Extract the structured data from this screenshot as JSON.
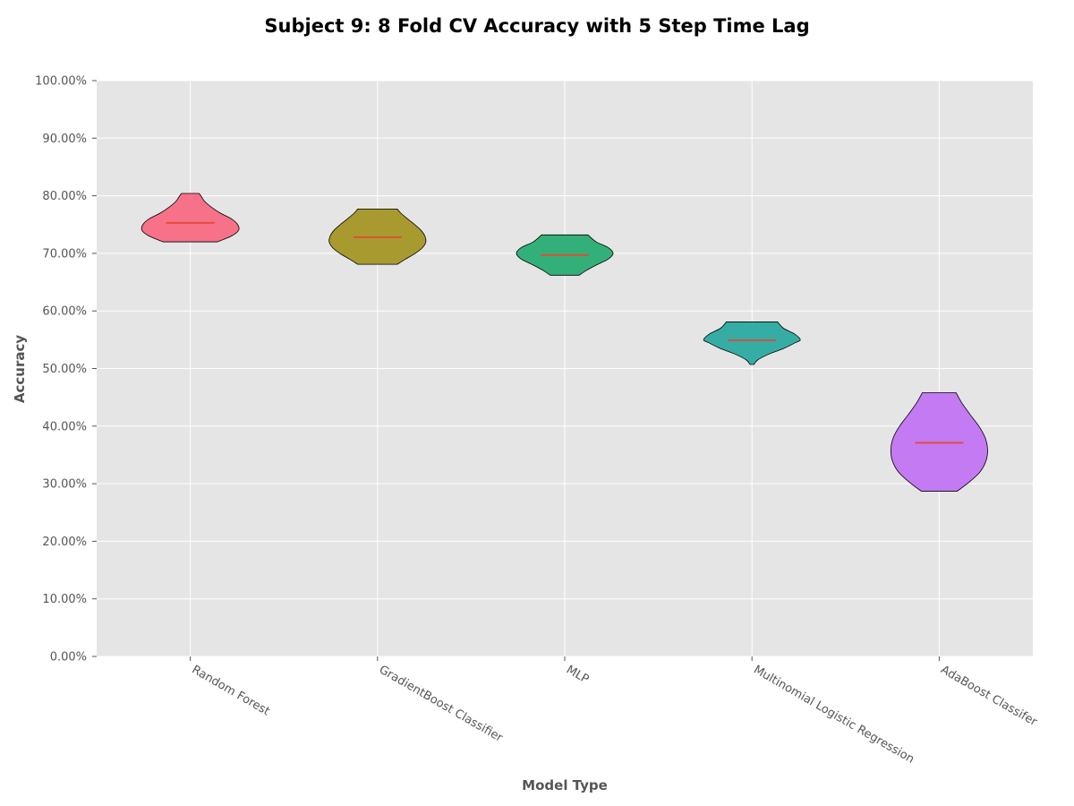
{
  "chart_data": {
    "type": "violin",
    "title": "Subject 9: 8 Fold CV Accuracy with 5 Step Time Lag",
    "xlabel": "Model Type",
    "ylabel": "Accuracy",
    "ylim": [
      0,
      1
    ],
    "yticks": [
      0,
      0.1,
      0.2,
      0.3,
      0.4,
      0.5,
      0.6,
      0.7,
      0.8,
      0.9,
      1.0
    ],
    "ytick_labels": [
      "0.00%",
      "10.00%",
      "20.00%",
      "30.00%",
      "40.00%",
      "50.00%",
      "60.00%",
      "70.00%",
      "80.00%",
      "90.00%",
      "100.00%"
    ],
    "grid": true,
    "background": "#e5e5e5",
    "median_color": "#e24a33",
    "categories": [
      "Random Forest",
      "GradientBoost Classifier",
      "MLP",
      "Multinomial Logistic Regression",
      "AdaBoost Classifer"
    ],
    "series": [
      {
        "color": "#f77189",
        "min": 0.72,
        "max": 0.804,
        "median": 0.753,
        "profile": [
          [
            0.72,
            0.56
          ],
          [
            0.73,
            0.85
          ],
          [
            0.74,
            1.0
          ],
          [
            0.75,
            0.98
          ],
          [
            0.76,
            0.85
          ],
          [
            0.77,
            0.62
          ],
          [
            0.78,
            0.44
          ],
          [
            0.79,
            0.3
          ],
          [
            0.8,
            0.22
          ],
          [
            0.804,
            0.18
          ]
        ]
      },
      {
        "color": "#a99a30",
        "min": 0.681,
        "max": 0.777,
        "median": 0.728,
        "profile": [
          [
            0.681,
            0.41
          ],
          [
            0.69,
            0.58
          ],
          [
            0.7,
            0.78
          ],
          [
            0.71,
            0.93
          ],
          [
            0.72,
            1.0
          ],
          [
            0.73,
            0.98
          ],
          [
            0.74,
            0.9
          ],
          [
            0.75,
            0.77
          ],
          [
            0.76,
            0.62
          ],
          [
            0.77,
            0.48
          ],
          [
            0.777,
            0.41
          ]
        ]
      },
      {
        "color": "#33b07a",
        "min": 0.662,
        "max": 0.732,
        "median": 0.697,
        "profile": [
          [
            0.662,
            0.3
          ],
          [
            0.67,
            0.44
          ],
          [
            0.68,
            0.66
          ],
          [
            0.69,
            0.9
          ],
          [
            0.7,
            1.0
          ],
          [
            0.71,
            0.9
          ],
          [
            0.72,
            0.65
          ],
          [
            0.732,
            0.48
          ]
        ]
      },
      {
        "color": "#36ada4",
        "min": 0.507,
        "max": 0.581,
        "median": 0.549,
        "profile": [
          [
            0.507,
            0.04
          ],
          [
            0.515,
            0.12
          ],
          [
            0.525,
            0.35
          ],
          [
            0.535,
            0.66
          ],
          [
            0.545,
            0.9
          ],
          [
            0.55,
            1.0
          ],
          [
            0.56,
            0.88
          ],
          [
            0.57,
            0.65
          ],
          [
            0.581,
            0.53
          ]
        ]
      },
      {
        "color": "#c47af2",
        "min": 0.287,
        "max": 0.458,
        "median": 0.371,
        "profile": [
          [
            0.287,
            0.37
          ],
          [
            0.3,
            0.58
          ],
          [
            0.32,
            0.84
          ],
          [
            0.34,
            0.97
          ],
          [
            0.36,
            1.0
          ],
          [
            0.38,
            0.95
          ],
          [
            0.4,
            0.82
          ],
          [
            0.42,
            0.64
          ],
          [
            0.44,
            0.47
          ],
          [
            0.458,
            0.35
          ]
        ]
      }
    ]
  }
}
